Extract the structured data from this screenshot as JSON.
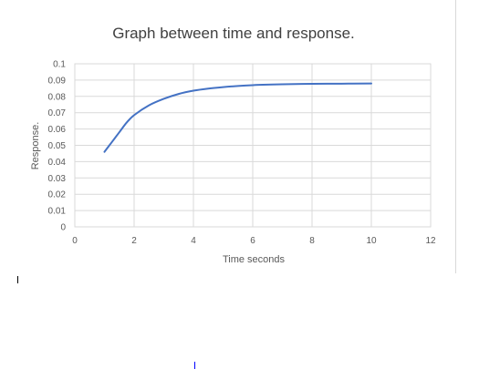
{
  "colors": {
    "series": "#4472c4",
    "grid": "#d9d9d9",
    "text": "#595959",
    "title": "#404040"
  },
  "chart_data": {
    "type": "line",
    "title": "Graph between time and response.",
    "xlabel": "Time seconds",
    "ylabel": "Response.",
    "xlim": [
      0,
      12
    ],
    "ylim": [
      0,
      0.1
    ],
    "x_ticks": [
      "0",
      "2",
      "4",
      "6",
      "8",
      "10",
      "12"
    ],
    "y_ticks": [
      "0",
      "0.01",
      "0.02",
      "0.03",
      "0.04",
      "0.05",
      "0.06",
      "0.07",
      "0.08",
      "0.09",
      "0.1"
    ],
    "grid": true,
    "legend": "none",
    "series": [
      {
        "x": [
          1,
          1.25,
          1.5,
          1.75,
          2,
          2.5,
          3,
          3.5,
          4,
          4.5,
          5,
          5.5,
          6,
          6.5,
          7,
          8,
          9,
          10
        ],
        "y": [
          0.046,
          0.052,
          0.058,
          0.064,
          0.0685,
          0.0745,
          0.0785,
          0.0815,
          0.0835,
          0.0848,
          0.0857,
          0.0864,
          0.0869,
          0.0872,
          0.0874,
          0.0877,
          0.0878,
          0.0879
        ]
      }
    ]
  }
}
